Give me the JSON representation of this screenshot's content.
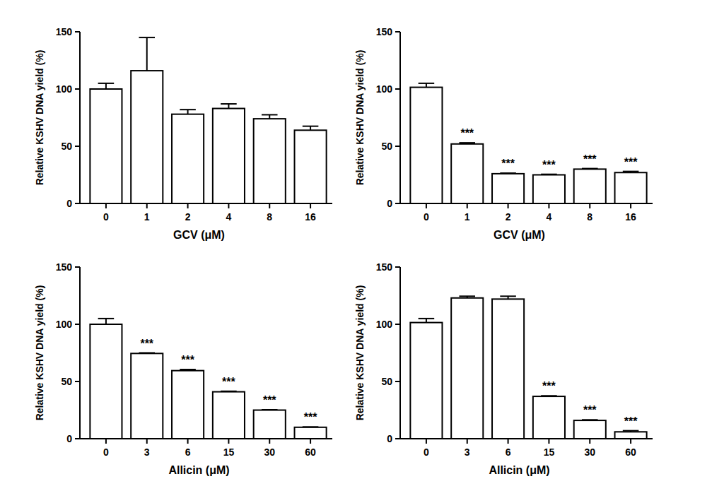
{
  "chart_data": [
    {
      "type": "bar",
      "x_label": "GCV (μM)",
      "y_label": "Relative KSHV DNA yield (%)",
      "categories": [
        "0",
        "1",
        "2",
        "4",
        "8",
        "16"
      ],
      "values": [
        100,
        116,
        78,
        83,
        74,
        64
      ],
      "errors": [
        5,
        29,
        4,
        4,
        3.5,
        3.5
      ],
      "significance": [
        null,
        null,
        null,
        null,
        null,
        null
      ],
      "color": "#ffffff",
      "ylim": [
        0,
        150
      ],
      "yticks": [
        0,
        50,
        100,
        150
      ],
      "grid": false
    },
    {
      "type": "bar",
      "x_label": "GCV (μM)",
      "y_label": "Relative KSHV DNA yield (%)",
      "categories": [
        "0",
        "1",
        "2",
        "4",
        "8",
        "16"
      ],
      "values": [
        101.5,
        52,
        26,
        25,
        30,
        27
      ],
      "errors": [
        3.5,
        1,
        0.5,
        0.5,
        0.5,
        1
      ],
      "significance": [
        null,
        "***",
        "***",
        "***",
        "***",
        "***"
      ],
      "color": "#ffffff",
      "ylim": [
        0,
        150
      ],
      "yticks": [
        0,
        50,
        100,
        150
      ],
      "grid": false
    },
    {
      "type": "bar",
      "x_label": "Allicin (μM)",
      "y_label": "Relative KSHV DNA yield (%)",
      "categories": [
        "0",
        "3",
        "6",
        "15",
        "30",
        "60"
      ],
      "values": [
        100,
        74.5,
        59.5,
        41,
        25,
        10
      ],
      "errors": [
        5,
        0.5,
        1,
        0.5,
        0.3,
        0.3
      ],
      "significance": [
        null,
        "***",
        "***",
        "***",
        "***",
        "***"
      ],
      "color": "#ffffff",
      "ylim": [
        0,
        150
      ],
      "yticks": [
        0,
        50,
        100,
        150
      ],
      "grid": false
    },
    {
      "type": "bar",
      "x_label": "Allicin (μM)",
      "y_label": "Relative KSHV DNA yield (%)",
      "categories": [
        "0",
        "3",
        "6",
        "15",
        "30",
        "60"
      ],
      "values": [
        101.5,
        123,
        122,
        37,
        16,
        6
      ],
      "errors": [
        3.5,
        1.5,
        2.5,
        0.5,
        0.5,
        1
      ],
      "significance": [
        null,
        null,
        null,
        "***",
        "***",
        "***"
      ],
      "color": "#ffffff",
      "ylim": [
        0,
        150
      ],
      "yticks": [
        0,
        50,
        100,
        150
      ],
      "grid": false
    }
  ]
}
